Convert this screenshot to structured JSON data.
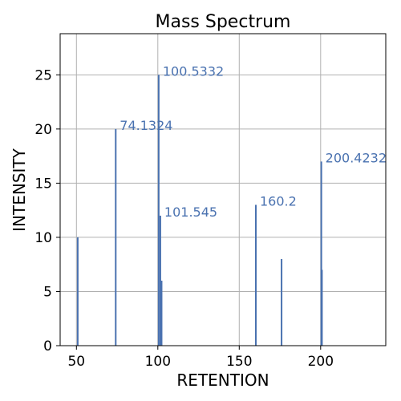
{
  "chart_data": {
    "type": "bar",
    "title": "Mass Spectrum",
    "xlabel": "RETENTION",
    "ylabel": "INTENSITY",
    "xlim": [
      40,
      240
    ],
    "ylim": [
      0,
      28.8
    ],
    "xticks": [
      50,
      100,
      150,
      200
    ],
    "yticks": [
      0,
      5,
      10,
      15,
      20,
      25
    ],
    "grid": true,
    "bar_color": "#4a72b0",
    "label_color": "#4a72b0",
    "series": [
      {
        "x": [
          50.8,
          74.1324,
          100.5332,
          101.545,
          102.3,
          160.2,
          176.0,
          200.4232,
          200.8
        ],
        "values": [
          10,
          20,
          25,
          12,
          6,
          13,
          8,
          17,
          7
        ]
      }
    ],
    "annotations": [
      {
        "x": 74.1324,
        "y": 20,
        "text": "74.1324"
      },
      {
        "x": 100.5332,
        "y": 25,
        "text": "100.5332"
      },
      {
        "x": 101.545,
        "y": 12,
        "text": "101.545"
      },
      {
        "x": 160.2,
        "y": 13,
        "text": "160.2"
      },
      {
        "x": 200.4232,
        "y": 17,
        "text": "200.4232"
      }
    ]
  }
}
